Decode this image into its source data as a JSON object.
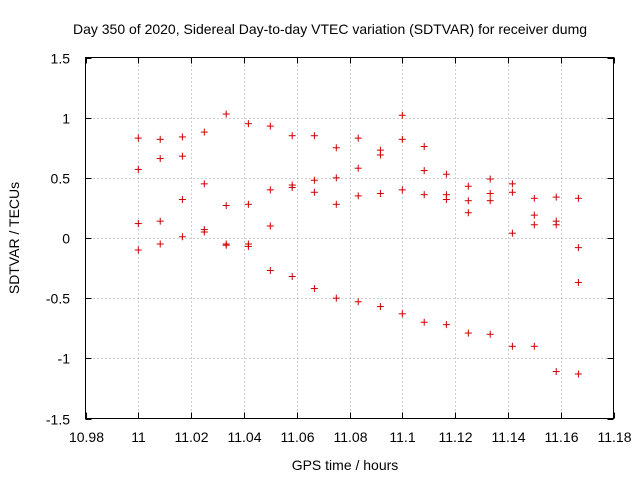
{
  "chart_data": {
    "type": "scatter",
    "title": "Day 350 of 2020, Sidereal Day-to-day VTEC variation (SDTVAR) for receiver dumg",
    "xlabel": "GPS time / hours",
    "ylabel": "SDTVAR / TECUs",
    "xlim": [
      10.98,
      11.18
    ],
    "ylim": [
      -1.5,
      1.5
    ],
    "xticks": [
      10.98,
      11,
      11.02,
      11.04,
      11.06,
      11.08,
      11.1,
      11.12,
      11.14,
      11.16,
      11.18
    ],
    "xtick_labels": [
      "10.98",
      "11",
      "11.02",
      "11.04",
      "11.06",
      "11.08",
      "11.1",
      "11.12",
      "11.14",
      "11.16",
      "11.18"
    ],
    "yticks": [
      1.5,
      1,
      0.5,
      0,
      -0.5,
      -1,
      -1.5
    ],
    "ytick_labels": [
      "1.5",
      "1",
      "0.5",
      "0",
      "-0.5",
      "-1",
      "-1.5"
    ],
    "grid": true,
    "marker_color": "#cc0000",
    "series": [
      {
        "name": "SDTVAR",
        "marker": "+",
        "points": [
          [
            11.0,
            0.83
          ],
          [
            11.0,
            0.57
          ],
          [
            11.0,
            0.12
          ],
          [
            11.0,
            -0.1
          ],
          [
            11.0083,
            0.82
          ],
          [
            11.0083,
            0.66
          ],
          [
            11.0083,
            0.14
          ],
          [
            11.0083,
            -0.05
          ],
          [
            11.0167,
            0.84
          ],
          [
            11.0167,
            0.68
          ],
          [
            11.0167,
            0.32
          ],
          [
            11.0167,
            0.01
          ],
          [
            11.025,
            0.88
          ],
          [
            11.025,
            0.45
          ],
          [
            11.025,
            0.07
          ],
          [
            11.025,
            0.05
          ],
          [
            11.0333,
            1.03
          ],
          [
            11.0333,
            0.27
          ],
          [
            11.0333,
            -0.05
          ],
          [
            11.0333,
            -0.06
          ],
          [
            11.0417,
            0.95
          ],
          [
            11.0417,
            0.28
          ],
          [
            11.0417,
            -0.05
          ],
          [
            11.0417,
            -0.07
          ],
          [
            11.05,
            0.93
          ],
          [
            11.05,
            0.4
          ],
          [
            11.05,
            0.1
          ],
          [
            11.05,
            -0.27
          ],
          [
            11.0583,
            0.85
          ],
          [
            11.0583,
            0.44
          ],
          [
            11.0583,
            0.42
          ],
          [
            11.0583,
            -0.32
          ],
          [
            11.0667,
            0.85
          ],
          [
            11.0667,
            0.48
          ],
          [
            11.0667,
            0.38
          ],
          [
            11.0667,
            -0.42
          ],
          [
            11.075,
            0.75
          ],
          [
            11.075,
            0.5
          ],
          [
            11.075,
            0.28
          ],
          [
            11.075,
            -0.5
          ],
          [
            11.0833,
            0.83
          ],
          [
            11.0833,
            0.58
          ],
          [
            11.0833,
            0.35
          ],
          [
            11.0833,
            -0.53
          ],
          [
            11.0917,
            0.73
          ],
          [
            11.0917,
            0.69
          ],
          [
            11.0917,
            0.37
          ],
          [
            11.0917,
            -0.57
          ],
          [
            11.1,
            1.02
          ],
          [
            11.1,
            0.82
          ],
          [
            11.1,
            0.4
          ],
          [
            11.1,
            -0.63
          ],
          [
            11.1083,
            0.76
          ],
          [
            11.1083,
            0.56
          ],
          [
            11.1083,
            0.36
          ],
          [
            11.1083,
            -0.7
          ],
          [
            11.1167,
            0.53
          ],
          [
            11.1167,
            0.36
          ],
          [
            11.1167,
            0.32
          ],
          [
            11.1167,
            -0.72
          ],
          [
            11.125,
            0.43
          ],
          [
            11.125,
            0.31
          ],
          [
            11.125,
            0.21
          ],
          [
            11.125,
            -0.79
          ],
          [
            11.1333,
            0.49
          ],
          [
            11.1333,
            0.37
          ],
          [
            11.1333,
            0.31
          ],
          [
            11.1333,
            -0.8
          ],
          [
            11.1417,
            0.45
          ],
          [
            11.1417,
            0.38
          ],
          [
            11.1417,
            0.04
          ],
          [
            11.1417,
            -0.9
          ],
          [
            11.15,
            0.33
          ],
          [
            11.15,
            0.19
          ],
          [
            11.15,
            0.11
          ],
          [
            11.15,
            -0.9
          ],
          [
            11.1583,
            0.34
          ],
          [
            11.1583,
            0.14
          ],
          [
            11.1583,
            0.11
          ],
          [
            11.1583,
            -1.11
          ],
          [
            11.1667,
            0.33
          ],
          [
            11.1667,
            -0.08
          ],
          [
            11.1667,
            -0.37
          ],
          [
            11.1667,
            -1.13
          ]
        ]
      }
    ]
  }
}
